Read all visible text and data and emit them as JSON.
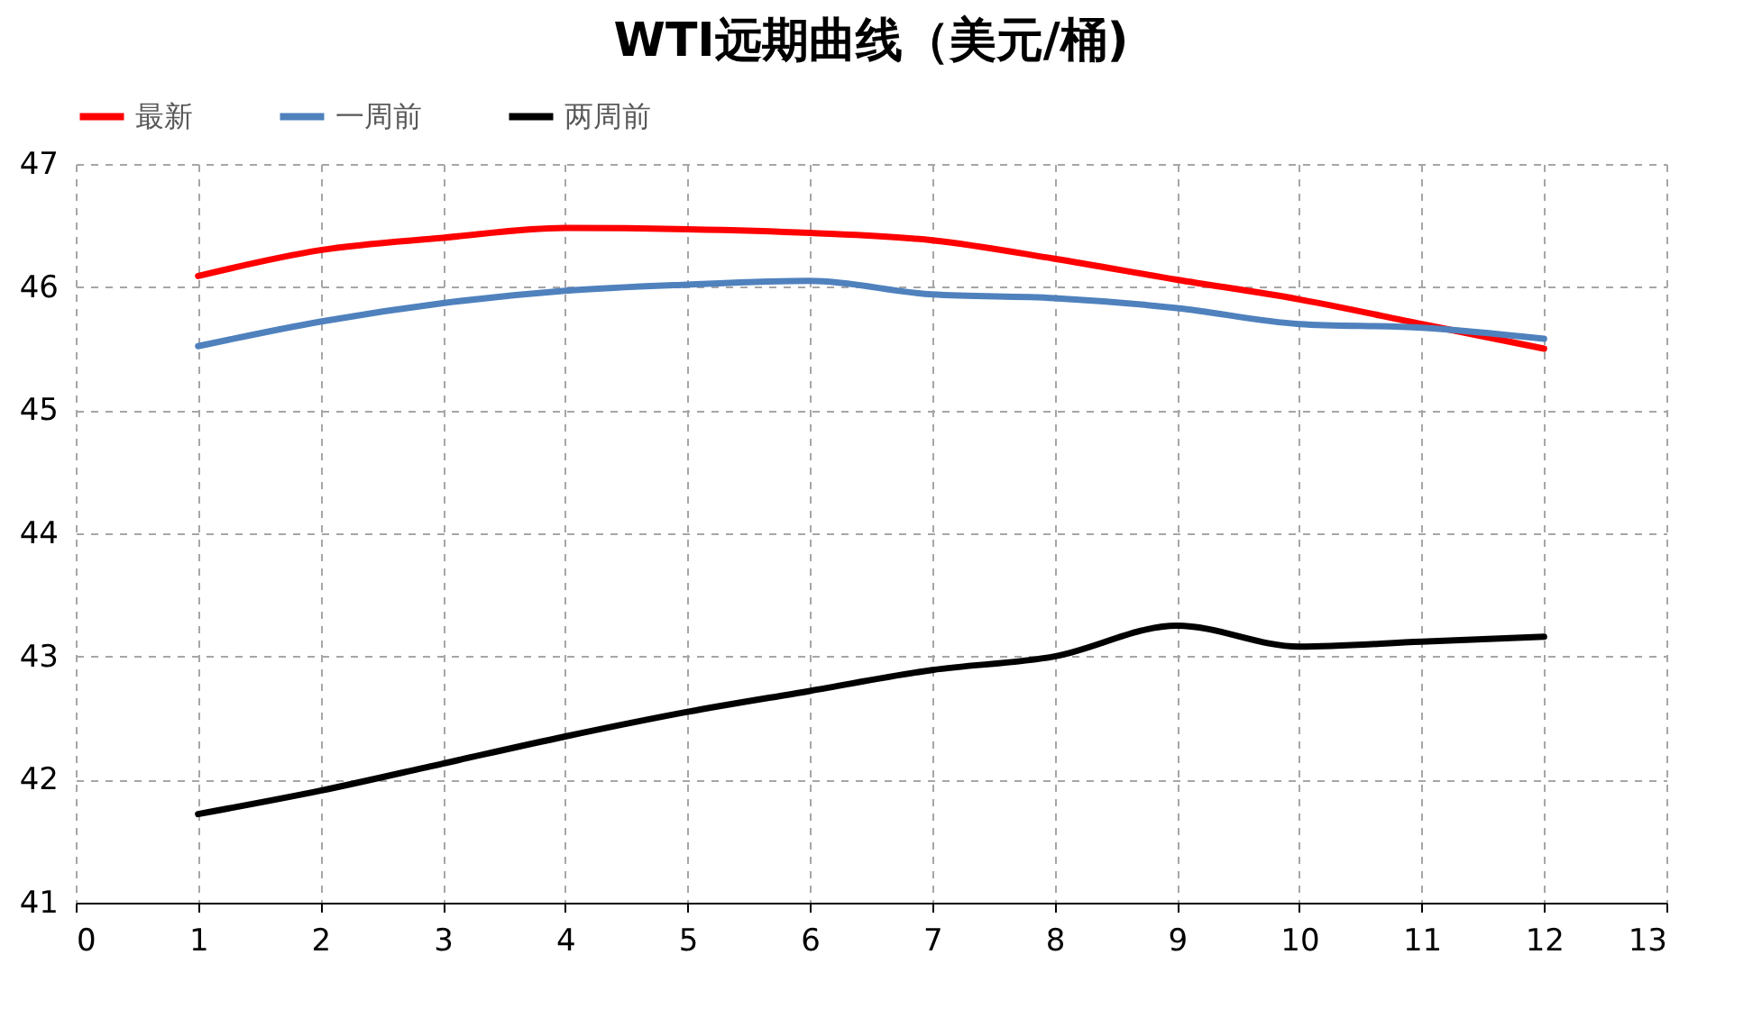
{
  "chart_data": {
    "type": "line",
    "title": "WTI远期曲线（美元/桶)",
    "x": [
      1,
      2,
      3,
      4,
      5,
      6,
      7,
      8,
      9,
      10,
      11,
      12
    ],
    "series": [
      {
        "name": "最新",
        "color": "#ff0000",
        "values": [
          46.09,
          46.3,
          46.4,
          46.48,
          46.47,
          46.44,
          46.38,
          46.23,
          46.06,
          45.9,
          45.7,
          45.5
        ]
      },
      {
        "name": "一周前",
        "color": "#4f81bd",
        "values": [
          45.52,
          45.72,
          45.87,
          45.97,
          46.02,
          46.05,
          45.94,
          45.91,
          45.83,
          45.7,
          45.67,
          45.58
        ]
      },
      {
        "name": "两周前",
        "color": "#000000",
        "values": [
          41.72,
          41.91,
          42.13,
          42.35,
          42.55,
          42.72,
          42.89,
          43.0,
          43.25,
          43.08,
          43.12,
          43.16
        ]
      }
    ],
    "xlim": [
      0,
      13
    ],
    "xticks": [
      0,
      1,
      2,
      3,
      4,
      5,
      6,
      7,
      8,
      9,
      10,
      11,
      12,
      13
    ],
    "ylim": [
      41,
      47
    ],
    "yticks": [
      41,
      42,
      43,
      44,
      45,
      46,
      47
    ],
    "grid": true,
    "legend": "top",
    "marker": "none",
    "line_style": "solid"
  }
}
